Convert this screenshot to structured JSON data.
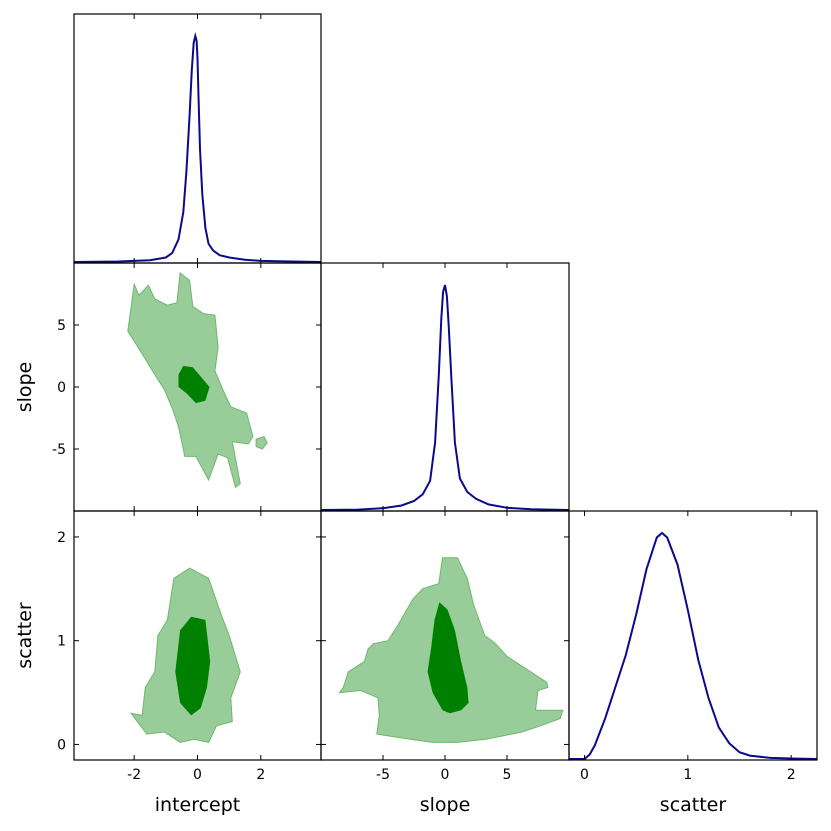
{
  "chart_data": {
    "type": "corner",
    "parameters": [
      "intercept",
      "slope",
      "scatter"
    ],
    "ranges": {
      "intercept": [
        -3.9,
        3.9
      ],
      "slope": [
        -10.0,
        10.0
      ],
      "scatter": [
        -0.15,
        2.25
      ]
    },
    "ticks": {
      "intercept": [
        "-2",
        "0",
        "2"
      ],
      "slope": [
        "-5",
        "0",
        "5"
      ],
      "scatter": [
        "0",
        "1",
        "2"
      ]
    },
    "tick_values": {
      "intercept": [
        -2,
        0,
        2
      ],
      "slope": [
        -5,
        0,
        5
      ],
      "scatter": [
        0,
        1,
        2
      ]
    },
    "diagonal": {
      "intercept": {
        "x": [
          -3.9,
          -2.5,
          -1.5,
          -1.0,
          -0.8,
          -0.6,
          -0.45,
          -0.35,
          -0.25,
          -0.18,
          -0.12,
          -0.07,
          -0.03,
          0.0,
          0.03,
          0.08,
          0.15,
          0.25,
          0.35,
          0.5,
          0.7,
          1.0,
          1.5,
          2.0,
          3.0,
          3.9
        ],
        "y": [
          0,
          0.002,
          0.008,
          0.02,
          0.04,
          0.1,
          0.22,
          0.4,
          0.65,
          0.85,
          0.97,
          1.0,
          0.98,
          0.9,
          0.75,
          0.5,
          0.3,
          0.15,
          0.08,
          0.05,
          0.03,
          0.02,
          0.01,
          0.005,
          0.002,
          0
        ]
      },
      "slope": {
        "x": [
          -10,
          -7,
          -5,
          -3.5,
          -2.5,
          -1.8,
          -1.2,
          -0.8,
          -0.5,
          -0.3,
          -0.15,
          0.0,
          0.15,
          0.3,
          0.5,
          0.8,
          1.2,
          1.8,
          2.5,
          3.5,
          5,
          7,
          10
        ],
        "y": [
          0,
          0.002,
          0.008,
          0.02,
          0.04,
          0.07,
          0.13,
          0.3,
          0.6,
          0.85,
          0.97,
          1.0,
          0.95,
          0.82,
          0.6,
          0.3,
          0.14,
          0.08,
          0.05,
          0.025,
          0.01,
          0.003,
          0
        ]
      },
      "scatter": {
        "x": [
          -0.15,
          0.0,
          0.05,
          0.1,
          0.2,
          0.3,
          0.4,
          0.5,
          0.6,
          0.7,
          0.75,
          0.8,
          0.9,
          1.0,
          1.1,
          1.2,
          1.3,
          1.4,
          1.5,
          1.6,
          1.8,
          2.0,
          2.25
        ],
        "y": [
          0,
          0.0,
          0.02,
          0.06,
          0.18,
          0.32,
          0.46,
          0.64,
          0.84,
          0.98,
          1.0,
          0.98,
          0.86,
          0.66,
          0.44,
          0.27,
          0.14,
          0.07,
          0.03,
          0.015,
          0.005,
          0.002,
          0
        ]
      }
    },
    "contours": {
      "slope_vs_intercept": {
        "outer": [
          [
            -2.2,
            4.5
          ],
          [
            -2.0,
            8.3
          ],
          [
            -1.85,
            7.4
          ],
          [
            -1.55,
            8.2
          ],
          [
            -1.35,
            7.1
          ],
          [
            -0.95,
            6.6
          ],
          [
            -0.65,
            6.8
          ],
          [
            -0.6,
            8.0
          ],
          [
            -0.55,
            9.2
          ],
          [
            -0.25,
            8.6
          ],
          [
            -0.15,
            6.5
          ],
          [
            0.2,
            5.9
          ],
          [
            0.55,
            5.8
          ],
          [
            0.65,
            3.2
          ],
          [
            0.55,
            1.3
          ],
          [
            0.8,
            -0.2
          ],
          [
            1.05,
            -1.6
          ],
          [
            1.55,
            -2.1
          ],
          [
            1.75,
            -4.0
          ],
          [
            1.6,
            -4.6
          ],
          [
            1.1,
            -4.4
          ],
          [
            1.35,
            -7.8
          ],
          [
            1.2,
            -8.1
          ],
          [
            0.95,
            -5.7
          ],
          [
            0.65,
            -5.4
          ],
          [
            0.35,
            -7.5
          ],
          [
            -0.05,
            -5.6
          ],
          [
            -0.4,
            -5.6
          ],
          [
            -0.6,
            -3.2
          ],
          [
            -0.8,
            -1.7
          ],
          [
            -1.05,
            -0.2
          ],
          [
            -1.4,
            1.2
          ],
          [
            -1.85,
            3.1
          ],
          [
            -2.2,
            4.5
          ]
        ],
        "inner": [
          [
            -0.6,
            1.0
          ],
          [
            -0.45,
            1.7
          ],
          [
            -0.15,
            1.6
          ],
          [
            0.05,
            1.0
          ],
          [
            0.38,
            0.0
          ],
          [
            0.25,
            -1.1
          ],
          [
            -0.05,
            -1.3
          ],
          [
            -0.35,
            -0.5
          ],
          [
            -0.6,
            0.0
          ],
          [
            -0.6,
            1.0
          ]
        ],
        "islands": [
          [
            [
              1.85,
              -4.2
            ],
            [
              2.1,
              -4.0
            ],
            [
              2.2,
              -4.5
            ],
            [
              2.05,
              -5.0
            ],
            [
              1.85,
              -4.8
            ],
            [
              1.85,
              -4.2
            ]
          ]
        ]
      },
      "scatter_vs_intercept": {
        "outer": [
          [
            -2.1,
            0.3
          ],
          [
            -1.75,
            0.28
          ],
          [
            -1.65,
            0.55
          ],
          [
            -1.35,
            0.7
          ],
          [
            -1.25,
            1.05
          ],
          [
            -0.95,
            1.2
          ],
          [
            -0.75,
            1.6
          ],
          [
            -0.25,
            1.7
          ],
          [
            0.35,
            1.6
          ],
          [
            0.75,
            1.25
          ],
          [
            1.0,
            1.05
          ],
          [
            1.35,
            0.7
          ],
          [
            1.05,
            0.45
          ],
          [
            1.1,
            0.22
          ],
          [
            0.6,
            0.18
          ],
          [
            0.35,
            0.02
          ],
          [
            -0.1,
            0.05
          ],
          [
            -0.55,
            0.02
          ],
          [
            -1.05,
            0.12
          ],
          [
            -1.6,
            0.1
          ],
          [
            -1.85,
            0.2
          ],
          [
            -2.1,
            0.3
          ]
        ],
        "inner": [
          [
            -0.7,
            0.7
          ],
          [
            -0.55,
            1.1
          ],
          [
            -0.2,
            1.23
          ],
          [
            0.25,
            1.2
          ],
          [
            0.4,
            0.8
          ],
          [
            0.3,
            0.55
          ],
          [
            0.1,
            0.35
          ],
          [
            -0.2,
            0.28
          ],
          [
            -0.55,
            0.4
          ],
          [
            -0.7,
            0.7
          ]
        ],
        "islands": []
      },
      "scatter_vs_slope": {
        "outer": [
          [
            -8.5,
            0.5
          ],
          [
            -8.2,
            0.55
          ],
          [
            -7.8,
            0.7
          ],
          [
            -6.5,
            0.8
          ],
          [
            -6.2,
            0.92
          ],
          [
            -5.8,
            0.97
          ],
          [
            -4.6,
            1.0
          ],
          [
            -3.8,
            1.15
          ],
          [
            -2.6,
            1.4
          ],
          [
            -1.8,
            1.5
          ],
          [
            -0.5,
            1.55
          ],
          [
            -0.2,
            1.8
          ],
          [
            1.0,
            1.8
          ],
          [
            1.8,
            1.6
          ],
          [
            2.3,
            1.35
          ],
          [
            3.2,
            1.05
          ],
          [
            4.0,
            0.98
          ],
          [
            5.0,
            0.85
          ],
          [
            7.8,
            0.63
          ],
          [
            8.2,
            0.6
          ],
          [
            8.3,
            0.55
          ],
          [
            7.5,
            0.52
          ],
          [
            7.3,
            0.33
          ],
          [
            9.5,
            0.33
          ],
          [
            9.3,
            0.25
          ],
          [
            7.7,
            0.18
          ],
          [
            6.2,
            0.12
          ],
          [
            3.3,
            0.05
          ],
          [
            1.0,
            0.02
          ],
          [
            -1.0,
            0.02
          ],
          [
            -2.8,
            0.05
          ],
          [
            -5.5,
            0.1
          ],
          [
            -5.3,
            0.28
          ],
          [
            -5.4,
            0.45
          ],
          [
            -6.8,
            0.52
          ],
          [
            -8.5,
            0.5
          ]
        ],
        "inner": [
          [
            -1.4,
            0.7
          ],
          [
            -1.1,
            0.95
          ],
          [
            -0.85,
            1.2
          ],
          [
            -0.45,
            1.37
          ],
          [
            0.2,
            1.3
          ],
          [
            0.8,
            1.1
          ],
          [
            1.3,
            0.8
          ],
          [
            1.8,
            0.55
          ],
          [
            1.9,
            0.4
          ],
          [
            1.3,
            0.33
          ],
          [
            0.4,
            0.3
          ],
          [
            -0.2,
            0.33
          ],
          [
            -1.0,
            0.5
          ],
          [
            -1.4,
            0.7
          ]
        ],
        "islands": []
      }
    }
  }
}
